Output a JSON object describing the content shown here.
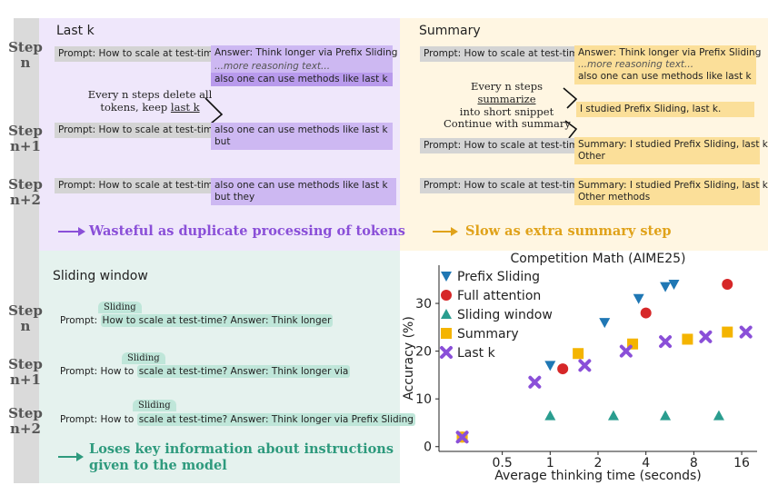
{
  "step_labels": {
    "n": [
      "Step",
      "n"
    ],
    "n1": [
      "Step",
      "n+1"
    ],
    "n2": [
      "Step",
      "n+2"
    ]
  },
  "last_k": {
    "title": "Last k",
    "prompt": "Prompt: How to scale at test-time?",
    "answer_1": "Answer: Think longer via Prefix Sliding",
    "more_reasoning": "...more reasoning text...",
    "answer_methods": "also one can use methods like last k",
    "note_line1": "Every n steps delete all",
    "note_line2_a": "tokens, keep ",
    "note_line2_b": "last k",
    "step1_line2": "but",
    "step2_line2": "but they",
    "conclusion": "Wasteful as duplicate processing of tokens"
  },
  "summary": {
    "title": "Summary",
    "prompt": "Prompt: How to scale at test-time?",
    "answer_1": "Answer: Think longer via Prefix Sliding",
    "more_reasoning": "...more reasoning text...",
    "answer_methods": "also one can use methods like last k",
    "note_line1_a": "Every n steps ",
    "note_line1_b": "summarize",
    "note_line2": "into short snippet",
    "snippet": "I studied Prefix Sliding, last k.",
    "continue": "Continue with summary",
    "sum_line1": "Summary: I studied Prefix Sliding, last k.",
    "sum_next1": "Other",
    "sum_next2": "Other methods",
    "conclusion": "Slow as extra summary step"
  },
  "sliding": {
    "title": "Sliding window",
    "tag": "Sliding",
    "prefix": "Prompt: How to",
    "highlight_1": "scale at test-time? Answer: Think longer",
    "highlight_2": "scale at test-time? Answer: Think longer via",
    "highlight_3": "scale at test-time? Answer: Think longer via Prefix Sliding",
    "line1_prefix": "Prompt: ",
    "line1_hl": "How to scale at test-time? Answer: Think longer",
    "conclusion_1": "Loses key information about instructions",
    "conclusion_2": "given to the model"
  },
  "colors": {
    "purple_panel": "#efe7fb",
    "orange_panel": "#fff6e2",
    "green_panel": "#e5f2ee",
    "purple_text": "#8a4fd8",
    "orange_text": "#e0a21a",
    "green_text": "#2e9a7d"
  },
  "chart_data": {
    "type": "scatter",
    "title": "Competition Math (AIME25)",
    "xlabel": "Average thinking time (seconds)",
    "ylabel": "Accuracy (%)",
    "x_scale": "log2",
    "xlim": [
      0.2,
      20
    ],
    "ylim": [
      -1,
      38
    ],
    "xticks": [
      0.5,
      1,
      2,
      4,
      8,
      16
    ],
    "xtick_labels": [
      "0.5",
      "1",
      "2",
      "4",
      "8",
      "16"
    ],
    "yticks": [
      0,
      10,
      20,
      30
    ],
    "ytick_labels": [
      "0",
      "10",
      "20",
      "30"
    ],
    "legend_position": "top-left",
    "series": [
      {
        "name": "Prefix Sliding",
        "marker": "triangle-down",
        "color": "#1f77b4",
        "x": [
          0.28,
          1.0,
          2.2,
          3.6,
          5.3,
          6.0
        ],
        "y": [
          2,
          17,
          26,
          31,
          33.5,
          34
        ]
      },
      {
        "name": "Full attention",
        "marker": "circle",
        "color": "#d62728",
        "x": [
          0.28,
          1.2,
          4.0,
          13.0
        ],
        "y": [
          2,
          16.3,
          28,
          34
        ]
      },
      {
        "name": "Sliding window",
        "marker": "triangle-up",
        "color": "#2a9d8f",
        "x": [
          0.28,
          1.0,
          2.5,
          5.3,
          11.5
        ],
        "y": [
          2,
          6.5,
          6.5,
          6.5,
          6.5
        ]
      },
      {
        "name": "Summary",
        "marker": "square",
        "color": "#f4b400",
        "x": [
          0.28,
          1.5,
          3.3,
          7.3,
          13.0
        ],
        "y": [
          2,
          19.5,
          21.5,
          22.5,
          24
        ]
      },
      {
        "name": "Last k",
        "marker": "x",
        "color": "#8a4fd8",
        "x": [
          0.28,
          0.8,
          1.65,
          3.0,
          5.3,
          9.5,
          17.0
        ],
        "y": [
          2,
          13.5,
          17,
          20,
          22,
          23,
          24
        ]
      }
    ]
  }
}
